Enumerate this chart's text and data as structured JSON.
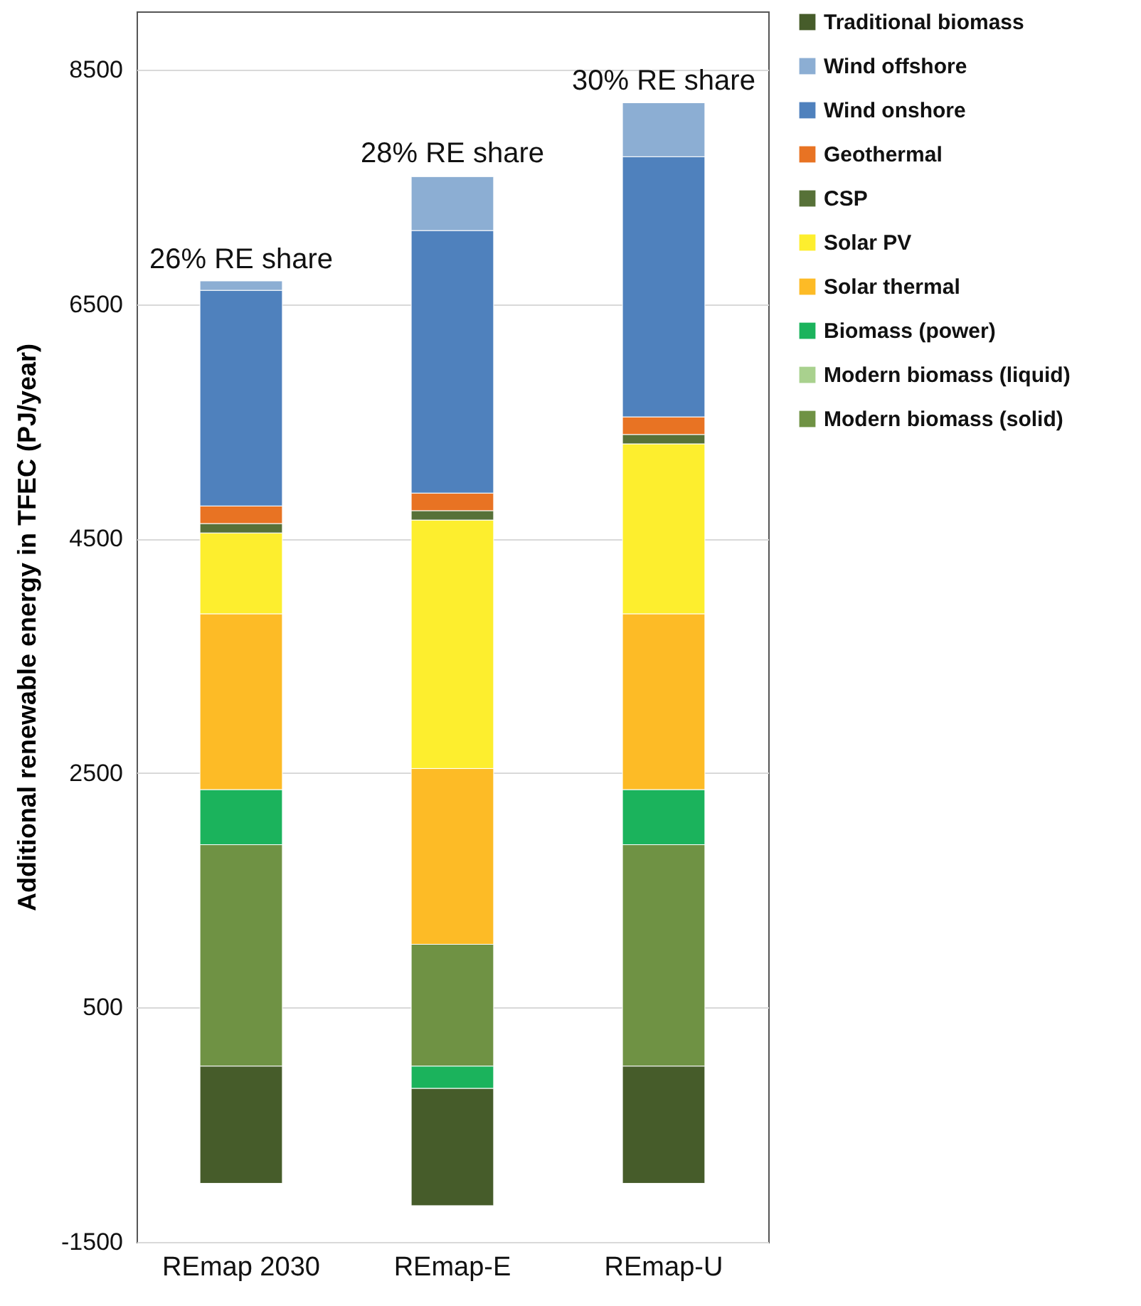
{
  "chart_data": {
    "type": "bar",
    "stacked": true,
    "ylabel": "Additional renewable energy in TFEC (PJ/year)",
    "categories": [
      "REmap 2030",
      "REmap-E",
      "REmap-U"
    ],
    "series": [
      {
        "name": "Modern biomass (solid)",
        "color": "#6f9244",
        "values": [
          1890,
          1040,
          1890
        ]
      },
      {
        "name": "Modern biomass (liquid)",
        "color": "#a9d18e",
        "values": [
          0,
          0,
          0
        ]
      },
      {
        "name": "Biomass (power)",
        "color": "#1bb35c",
        "values": [
          470,
          -190,
          470
        ]
      },
      {
        "name": "Solar thermal",
        "color": "#fdbb26",
        "values": [
          1500,
          1500,
          1500
        ]
      },
      {
        "name": "Solar PV",
        "color": "#fdee2e",
        "values": [
          690,
          2120,
          1450
        ]
      },
      {
        "name": "CSP",
        "color": "#577138",
        "values": [
          80,
          80,
          80
        ]
      },
      {
        "name": "Geothermal",
        "color": "#e87323",
        "values": [
          150,
          150,
          150
        ]
      },
      {
        "name": "Wind onshore",
        "color": "#4f81bd",
        "values": [
          1840,
          2240,
          2220
        ]
      },
      {
        "name": "Wind offshore",
        "color": "#8caed3",
        "values": [
          80,
          460,
          460
        ]
      },
      {
        "name": "Traditional biomass",
        "color": "#465c2a",
        "values": [
          -1000,
          -1000,
          -1000
        ]
      }
    ],
    "annotations": [
      {
        "text": "26% RE share",
        "x": "REmap 2030",
        "y": 6690
      },
      {
        "text": "28% RE share",
        "x": "REmap-E",
        "y": 7590
      },
      {
        "text": "30% RE share",
        "x": "REmap-U",
        "y": 8210
      }
    ],
    "ylim": [
      -1500,
      9000
    ],
    "yticks": [
      -1500,
      500,
      2500,
      4500,
      6500,
      8500
    ],
    "grid": "y",
    "legend": "right"
  }
}
